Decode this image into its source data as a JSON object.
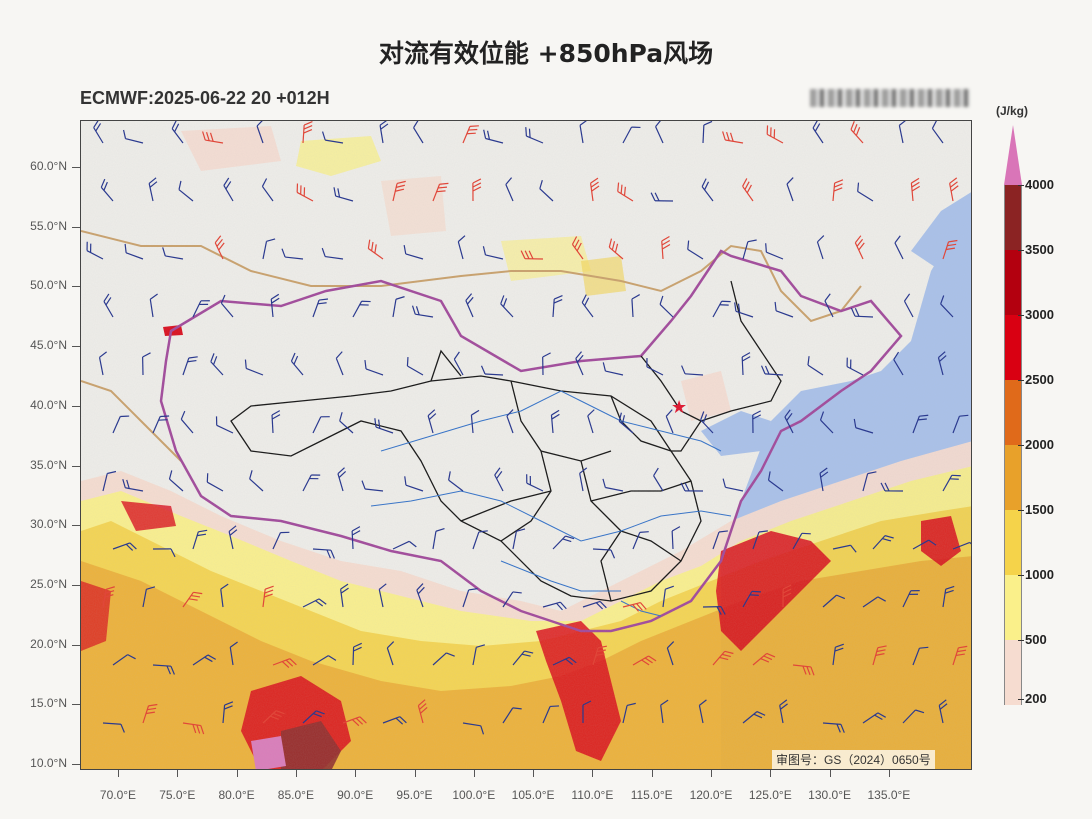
{
  "title": "对流有效位能 +850hPa风场",
  "subtitle": "ECMWF:2025-06-22 20 +012H",
  "review_number": "审图号：GS（2024）0650号",
  "lat_labels": [
    "60.0°N",
    "55.0°N",
    "50.0°N",
    "45.0°N",
    "40.0°N",
    "35.0°N",
    "30.0°N",
    "25.0°N",
    "20.0°N",
    "15.0°N",
    "10.0°N"
  ],
  "lon_labels": [
    "70.0°E",
    "75.0°E",
    "80.0°E",
    "85.0°E",
    "90.0°E",
    "95.0°E",
    "100.0°E",
    "105.0°E",
    "110.0°E",
    "115.0°E",
    "120.0°E",
    "125.0°E",
    "130.0°E",
    "135.0°E"
  ],
  "colorbar": {
    "units": "(J/kg)",
    "levels": [
      "4000",
      "3500",
      "3000",
      "2500",
      "2000",
      "1500",
      "1000",
      "500",
      "200"
    ],
    "colors": [
      "#8b2323",
      "#b3000f",
      "#d90012",
      "#e06a1a",
      "#e8a12a",
      "#f5d34a",
      "#faf08a",
      "#f6dcd0"
    ],
    "extend_color": "#d975b8"
  },
  "colors": {
    "land": "#efeeea",
    "sea": "#a9c1ea",
    "china_border": "#a0479a",
    "province": "#111111",
    "river": "#2f6fc8",
    "intl_border": "#c9a06a",
    "barb_low": "#2b3a8f",
    "barb_high": "#e0473a",
    "capital_marker": "#e0102a"
  }
}
